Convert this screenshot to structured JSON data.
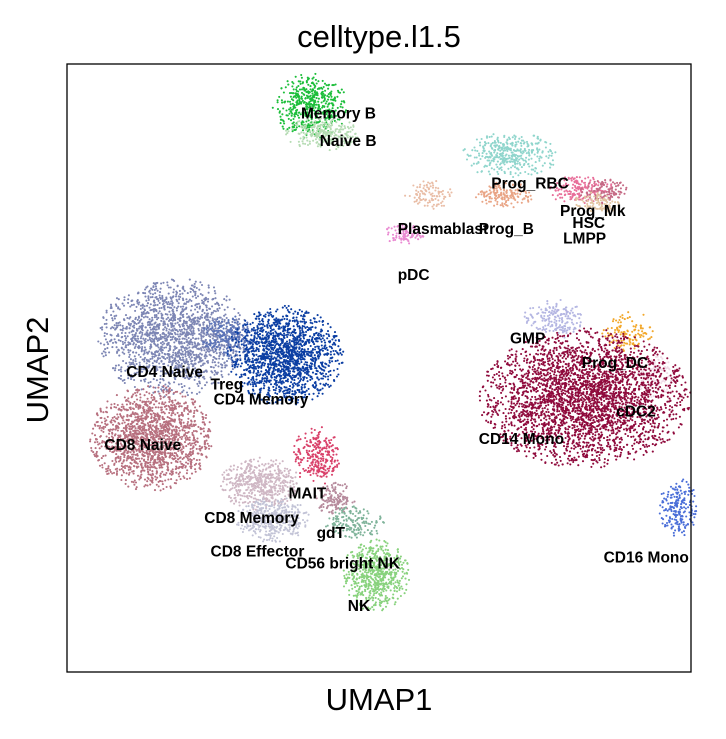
{
  "chart_data": {
    "type": "scatter",
    "title": "celltype.l1.5",
    "xlabel": "UMAP1",
    "ylabel": "UMAP2",
    "xticks": [],
    "yticks": [],
    "grid": false,
    "legend": "on data",
    "clusters": [
      {
        "name": "Memory B",
        "color": "#1cbe3a",
        "cx": 3.9,
        "cy": 9.3,
        "rx": 0.55,
        "ry": 0.5,
        "n": 480
      },
      {
        "name": "Naive B",
        "color": "#b6dcb4",
        "cx": 4.1,
        "cy": 8.85,
        "rx": 0.55,
        "ry": 0.25,
        "n": 260
      },
      {
        "name": "Prog_RBC",
        "color": "#8fd5cc",
        "cx": 7.1,
        "cy": 8.5,
        "rx": 0.7,
        "ry": 0.35,
        "n": 380
      },
      {
        "name": "Prog_Mk",
        "color": "#e86f9a",
        "cx": 8.2,
        "cy": 7.95,
        "rx": 0.5,
        "ry": 0.22,
        "n": 170
      },
      {
        "name": "HSC",
        "color": "#c56a85",
        "cx": 8.6,
        "cy": 7.9,
        "rx": 0.35,
        "ry": 0.2,
        "n": 110
      },
      {
        "name": "LMPP",
        "color": "#e2c5a2",
        "cx": 8.5,
        "cy": 7.7,
        "rx": 0.35,
        "ry": 0.2,
        "n": 100
      },
      {
        "name": "Prog_B",
        "color": "#e9a586",
        "cx": 7.0,
        "cy": 7.85,
        "rx": 0.45,
        "ry": 0.2,
        "n": 160
      },
      {
        "name": "Plasmablast",
        "color": "#e9bda6",
        "cx": 5.8,
        "cy": 7.85,
        "rx": 0.35,
        "ry": 0.22,
        "n": 100
      },
      {
        "name": "pDC",
        "color": "#e98ad2",
        "cx": 5.4,
        "cy": 7.2,
        "rx": 0.3,
        "ry": 0.15,
        "n": 90
      },
      {
        "name": "GMP",
        "color": "#b4b6e2",
        "cx": 7.8,
        "cy": 5.8,
        "rx": 0.45,
        "ry": 0.3,
        "n": 180
      },
      {
        "name": "Prog_DC",
        "color": "#f2a82c",
        "cx": 9.0,
        "cy": 5.6,
        "rx": 0.4,
        "ry": 0.3,
        "n": 120
      },
      {
        "name": "cDC2",
        "color": "#f0dce8",
        "cx": 9.4,
        "cy": 4.9,
        "rx": 0.3,
        "ry": 0.35,
        "n": 110
      },
      {
        "name": "CD14 Mono",
        "color": "#8f0a3c",
        "cx": 8.3,
        "cy": 4.5,
        "rx": 1.55,
        "ry": 1.05,
        "n": 3200
      },
      {
        "name": "CD16 Mono",
        "color": "#4a6ed8",
        "cx": 9.8,
        "cy": 2.7,
        "rx": 0.28,
        "ry": 0.45,
        "n": 210
      },
      {
        "name": "CD4 Naive",
        "color": "#7d86b4",
        "cx": 1.7,
        "cy": 5.5,
        "rx": 1.1,
        "ry": 0.9,
        "n": 1700
      },
      {
        "name": "Treg",
        "color": "#5a73b8",
        "cx": 2.6,
        "cy": 5.5,
        "rx": 0.4,
        "ry": 0.35,
        "n": 220
      },
      {
        "name": "CD4 Memory",
        "color": "#0b3ea3",
        "cx": 3.5,
        "cy": 5.2,
        "rx": 0.85,
        "ry": 0.75,
        "n": 1600
      },
      {
        "name": "CD8 Naive",
        "color": "#b7707f",
        "cx": 1.35,
        "cy": 3.85,
        "rx": 0.9,
        "ry": 0.8,
        "n": 1600
      },
      {
        "name": "MAIT",
        "color": "#d9416a",
        "cx": 4.0,
        "cy": 3.55,
        "rx": 0.35,
        "ry": 0.45,
        "n": 260
      },
      {
        "name": "CD8 Memory",
        "color": "#cfb7c4",
        "cx": 3.1,
        "cy": 3.1,
        "rx": 0.6,
        "ry": 0.4,
        "n": 500
      },
      {
        "name": "gdT",
        "color": "#b68a9c",
        "cx": 4.3,
        "cy": 2.85,
        "rx": 0.3,
        "ry": 0.25,
        "n": 140
      },
      {
        "name": "CD8 Effector",
        "color": "#c2c3d6",
        "cx": 3.3,
        "cy": 2.5,
        "rx": 0.55,
        "ry": 0.35,
        "n": 420
      },
      {
        "name": "CD56 bright NK",
        "color": "#7fb39a",
        "cx": 4.6,
        "cy": 2.45,
        "rx": 0.45,
        "ry": 0.25,
        "n": 160
      },
      {
        "name": "NK",
        "color": "#88d27d",
        "cx": 4.95,
        "cy": 1.6,
        "rx": 0.5,
        "ry": 0.55,
        "n": 620
      }
    ],
    "labels": [
      {
        "text": "Memory B",
        "x": 3.75,
        "y": 9.1
      },
      {
        "text": "Naive B",
        "x": 4.05,
        "y": 8.65
      },
      {
        "text": "Prog_RBC",
        "x": 6.8,
        "y": 7.95
      },
      {
        "text": "Prog_Mk",
        "x": 7.9,
        "y": 7.5
      },
      {
        "text": "Plasmablast",
        "x": 5.3,
        "y": 7.2
      },
      {
        "text": "Prog_B",
        "x": 6.6,
        "y": 7.2
      },
      {
        "text": "HSC",
        "x": 8.1,
        "y": 7.3
      },
      {
        "text": "LMPP",
        "x": 7.95,
        "y": 7.05
      },
      {
        "text": "pDC",
        "x": 5.3,
        "y": 6.45
      },
      {
        "text": "GMP",
        "x": 7.1,
        "y": 5.4
      },
      {
        "text": "Prog_DC",
        "x": 8.25,
        "y": 5.0
      },
      {
        "text": "CD4 Naive",
        "x": 0.95,
        "y": 4.85
      },
      {
        "text": "Treg",
        "x": 2.3,
        "y": 4.65
      },
      {
        "text": "CD4 Memory",
        "x": 2.35,
        "y": 4.4
      },
      {
        "text": "cDC2",
        "x": 8.8,
        "y": 4.2
      },
      {
        "text": "CD14 Mono",
        "x": 6.6,
        "y": 3.75
      },
      {
        "text": "CD8 Naive",
        "x": 0.6,
        "y": 3.65
      },
      {
        "text": "MAIT",
        "x": 3.55,
        "y": 2.85
      },
      {
        "text": "CD8 Memory",
        "x": 2.2,
        "y": 2.45
      },
      {
        "text": "gdT",
        "x": 4.0,
        "y": 2.2
      },
      {
        "text": "CD8 Effector",
        "x": 2.3,
        "y": 1.9
      },
      {
        "text": "CD56 bright NK",
        "x": 3.5,
        "y": 1.7
      },
      {
        "text": "CD16 Mono",
        "x": 8.6,
        "y": 1.8
      },
      {
        "text": "NK",
        "x": 4.5,
        "y": 1.0
      }
    ],
    "xlim": [
      0,
      10
    ],
    "ylim": [
      0,
      10
    ]
  }
}
